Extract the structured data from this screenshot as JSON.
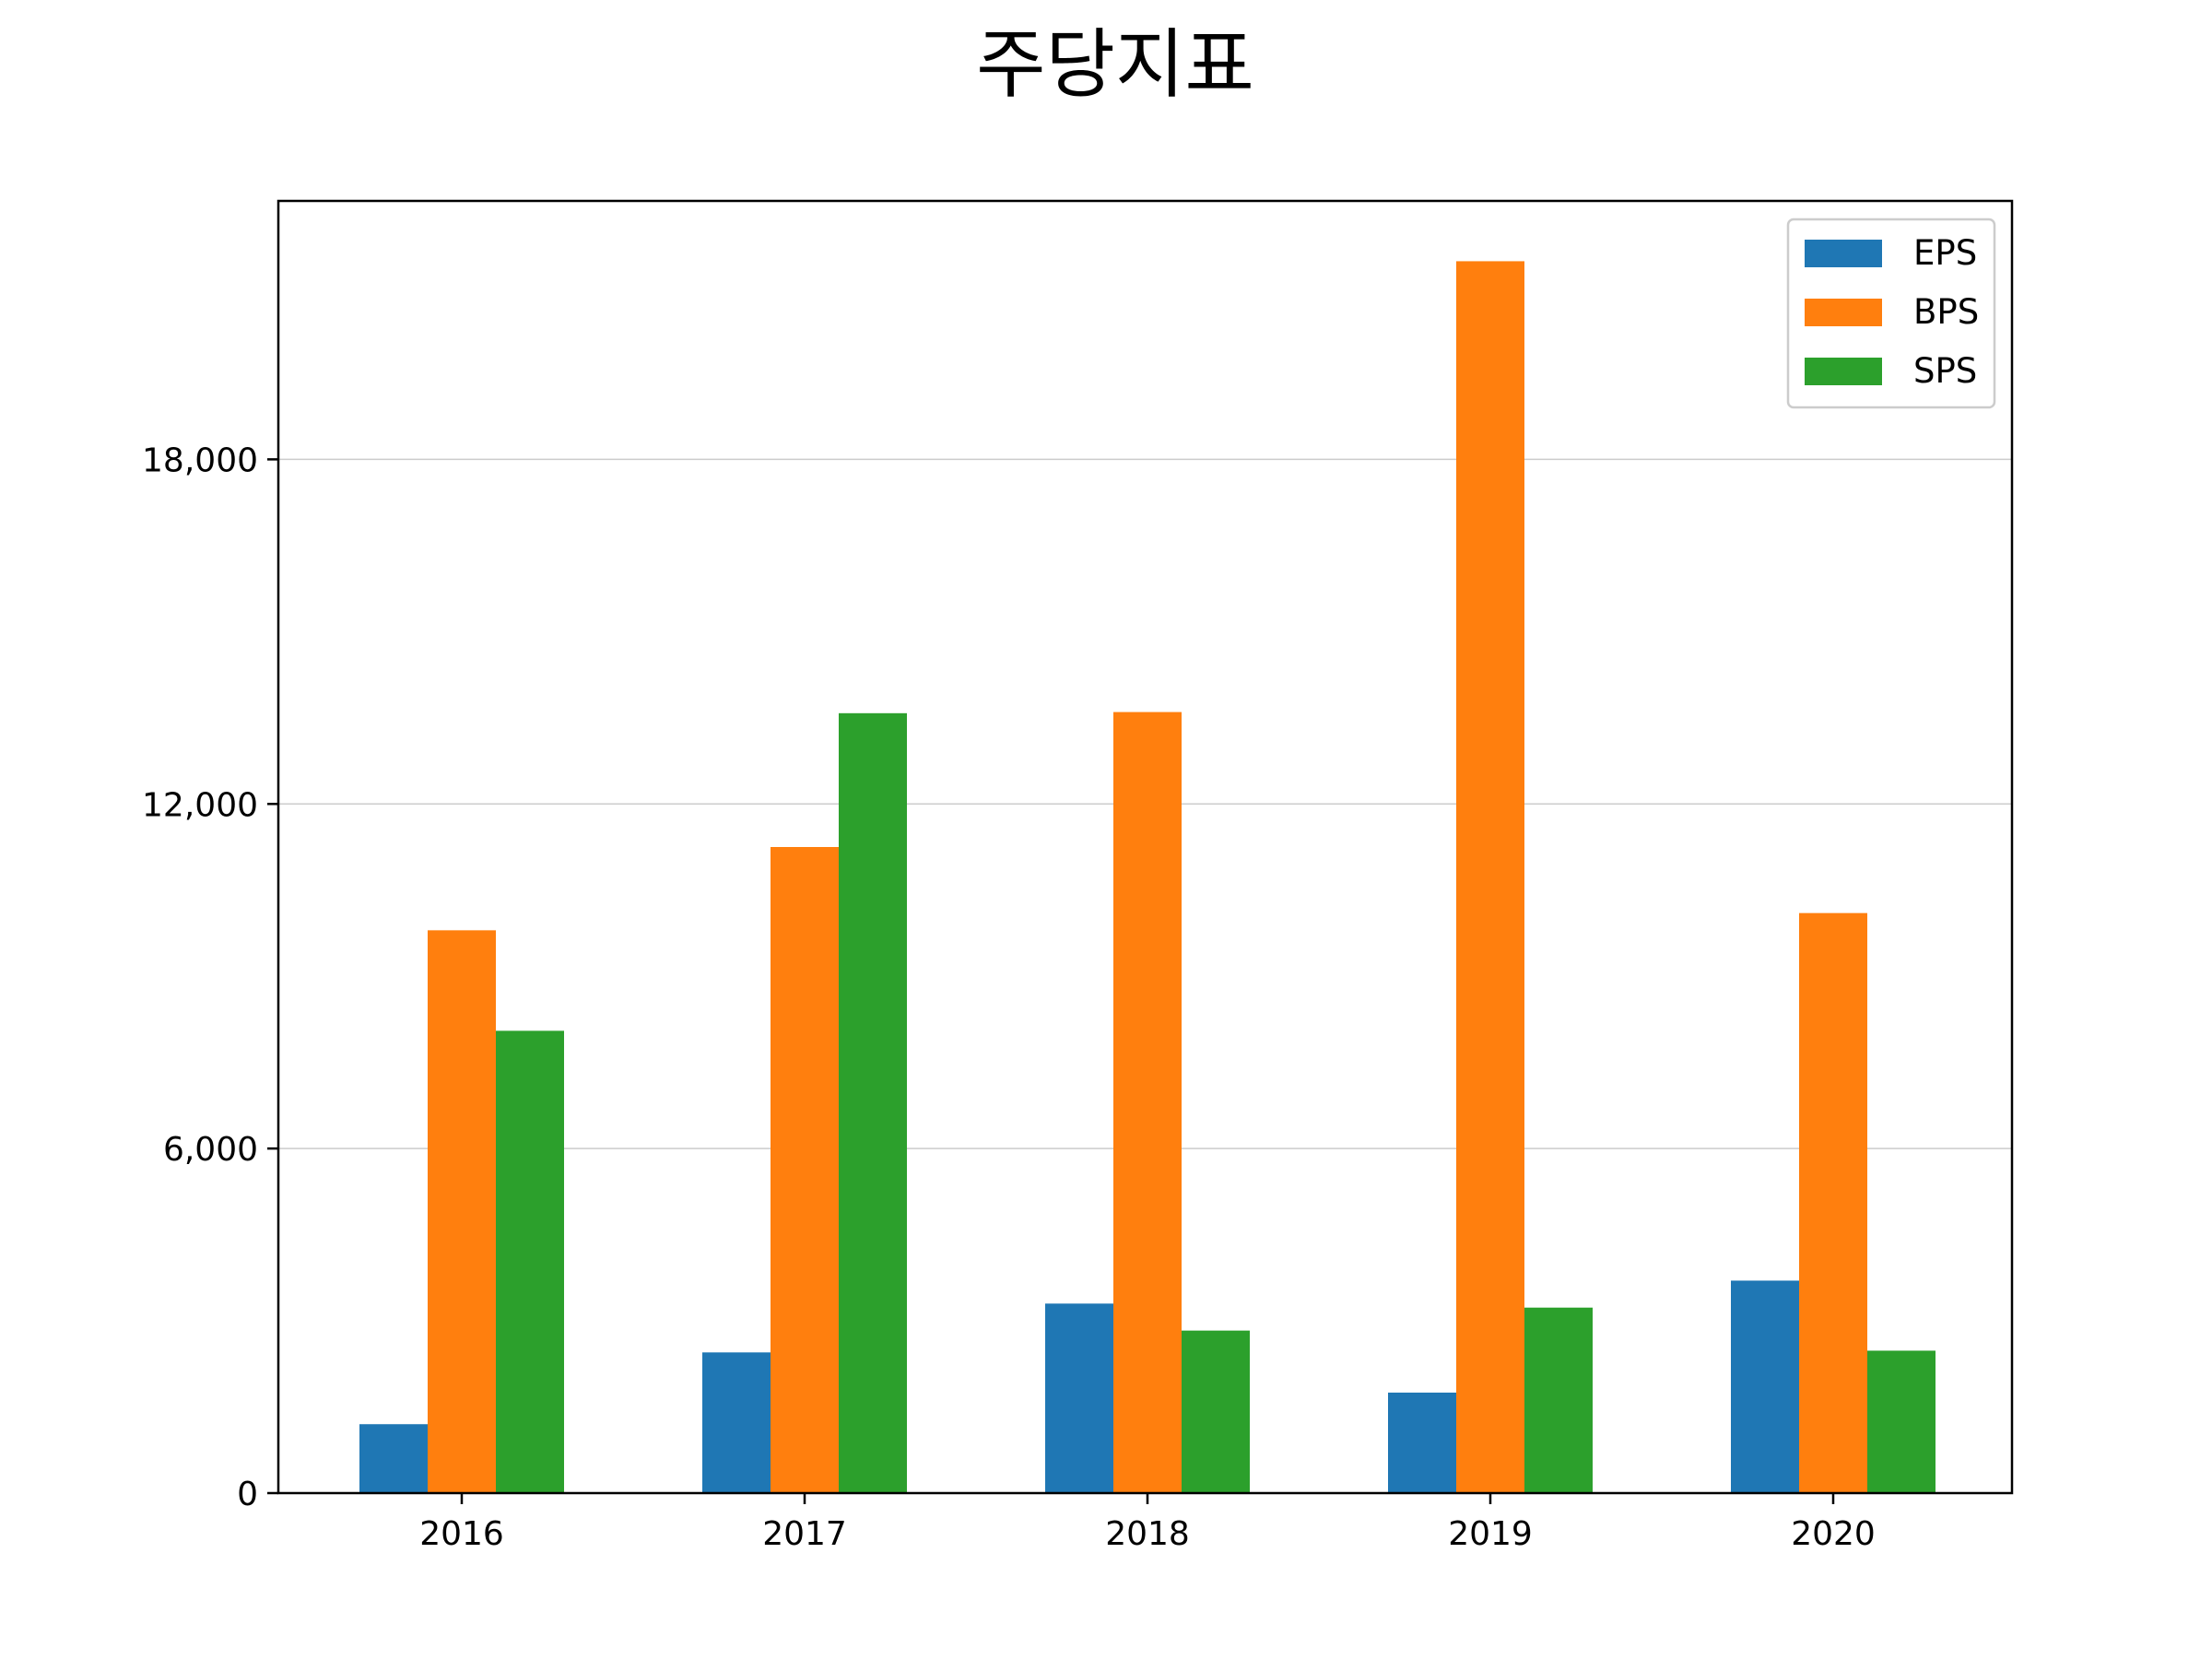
{
  "chart_data": {
    "type": "bar",
    "title": "주당지표",
    "xlabel": "",
    "ylabel": "",
    "categories": [
      "2016",
      "2017",
      "2018",
      "2019",
      "2020"
    ],
    "series": [
      {
        "name": "EPS",
        "color": "#1f77b4",
        "values": [
          1200,
          2450,
          3300,
          1750,
          3700
        ]
      },
      {
        "name": "BPS",
        "color": "#ff7f0e",
        "values": [
          9800,
          11250,
          13600,
          21450,
          10100
        ]
      },
      {
        "name": "SPS",
        "color": "#2ca02c",
        "values": [
          8050,
          13580,
          2830,
          3230,
          2480
        ]
      }
    ],
    "yticks": [
      0,
      6000,
      12000,
      18000
    ],
    "ytick_labels": [
      "0",
      "6,000",
      "12,000",
      "18,000"
    ],
    "ylim": [
      0,
      22500
    ],
    "grid": "horizontal",
    "legend_position": "top-right"
  }
}
